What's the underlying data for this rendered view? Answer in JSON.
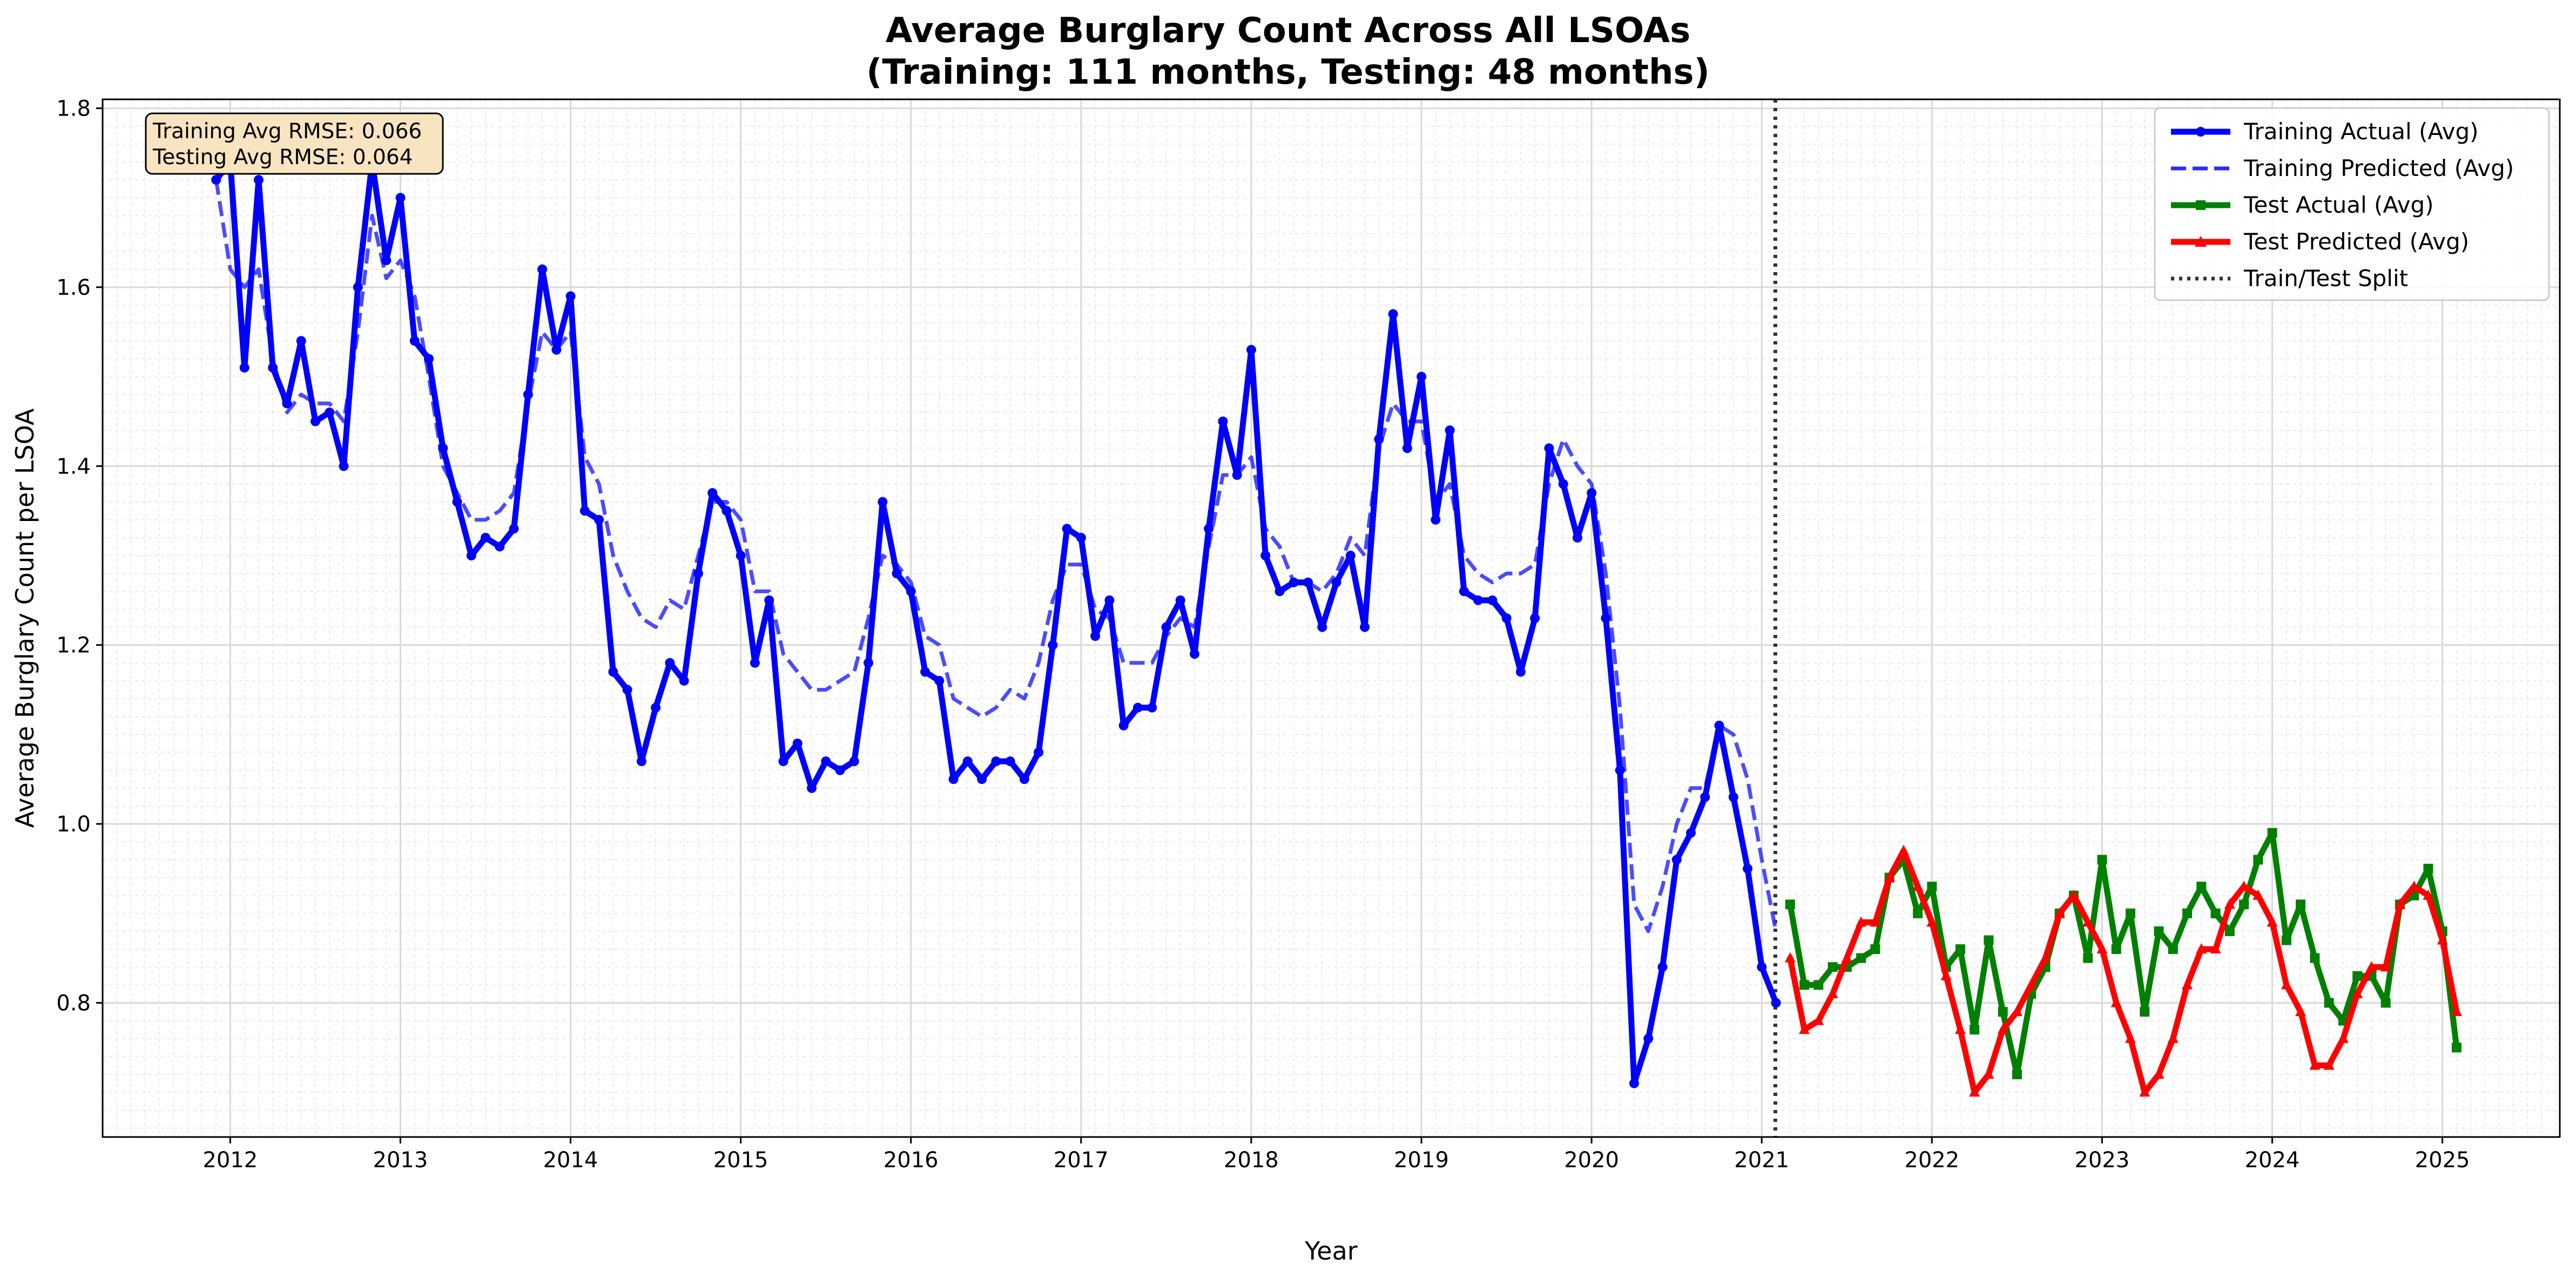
{
  "chart_data": {
    "type": "line",
    "title": "Average Burglary Count Across All LSOAs",
    "subtitle": "(Training: 111 months, Testing: 48 months)",
    "xlabel": "Year",
    "ylabel": "Average Burglary Count per LSOA",
    "xlim": [
      2011.25,
      2025.69
    ],
    "ylim": [
      0.65,
      1.81
    ],
    "x_ticks": [
      2012,
      2013,
      2014,
      2015,
      2016,
      2017,
      2018,
      2019,
      2020,
      2021,
      2022,
      2023,
      2024,
      2025
    ],
    "y_ticks": [
      0.8,
      1.0,
      1.2,
      1.4,
      1.6,
      1.8
    ],
    "grid": true,
    "legend_position": "top-right",
    "split_x": 2021.08,
    "annotation": [
      "Training Avg RMSE: 0.066",
      "Testing Avg RMSE: 0.064"
    ],
    "x_train_start": 2011.917,
    "x_test_start": 2021.167,
    "series": [
      {
        "name": "Training Actual (Avg)",
        "color": "#0000ff",
        "style": "solid",
        "marker": "circle",
        "values": [
          1.72,
          1.74,
          1.51,
          1.72,
          1.51,
          1.47,
          1.54,
          1.45,
          1.46,
          1.4,
          1.6,
          1.74,
          1.63,
          1.7,
          1.54,
          1.52,
          1.42,
          1.36,
          1.3,
          1.32,
          1.31,
          1.33,
          1.48,
          1.62,
          1.53,
          1.59,
          1.35,
          1.34,
          1.17,
          1.15,
          1.07,
          1.13,
          1.18,
          1.16,
          1.28,
          1.37,
          1.35,
          1.3,
          1.18,
          1.25,
          1.07,
          1.09,
          1.04,
          1.07,
          1.06,
          1.07,
          1.18,
          1.36,
          1.28,
          1.26,
          1.17,
          1.16,
          1.05,
          1.07,
          1.05,
          1.07,
          1.07,
          1.05,
          1.08,
          1.2,
          1.33,
          1.32,
          1.21,
          1.25,
          1.11,
          1.13,
          1.13,
          1.22,
          1.25,
          1.19,
          1.33,
          1.45,
          1.39,
          1.53,
          1.3,
          1.26,
          1.27,
          1.27,
          1.22,
          1.27,
          1.3,
          1.22,
          1.43,
          1.57,
          1.42,
          1.5,
          1.34,
          1.44,
          1.26,
          1.25,
          1.25,
          1.23,
          1.17,
          1.23,
          1.42,
          1.38,
          1.32,
          1.37,
          1.23,
          1.06,
          0.71,
          0.76,
          0.84,
          0.96,
          0.99,
          1.03,
          1.11,
          1.03,
          0.95,
          0.84,
          0.8
        ]
      },
      {
        "name": "Training Predicted (Avg)",
        "color": "#2b2bff",
        "style": "dashed",
        "marker": "none",
        "values": [
          1.72,
          1.62,
          1.6,
          1.62,
          1.52,
          1.46,
          1.48,
          1.47,
          1.47,
          1.45,
          1.55,
          1.68,
          1.61,
          1.63,
          1.59,
          1.5,
          1.4,
          1.37,
          1.34,
          1.34,
          1.35,
          1.37,
          1.47,
          1.55,
          1.53,
          1.55,
          1.41,
          1.38,
          1.3,
          1.26,
          1.23,
          1.22,
          1.25,
          1.24,
          1.3,
          1.36,
          1.36,
          1.34,
          1.26,
          1.26,
          1.19,
          1.17,
          1.15,
          1.15,
          1.16,
          1.17,
          1.23,
          1.3,
          1.29,
          1.27,
          1.21,
          1.2,
          1.14,
          1.13,
          1.12,
          1.13,
          1.15,
          1.14,
          1.18,
          1.25,
          1.29,
          1.29,
          1.24,
          1.23,
          1.18,
          1.18,
          1.18,
          1.21,
          1.23,
          1.22,
          1.31,
          1.39,
          1.39,
          1.41,
          1.33,
          1.31,
          1.27,
          1.27,
          1.26,
          1.28,
          1.32,
          1.3,
          1.42,
          1.47,
          1.45,
          1.45,
          1.36,
          1.38,
          1.3,
          1.28,
          1.27,
          1.28,
          1.28,
          1.29,
          1.38,
          1.43,
          1.4,
          1.38,
          1.28,
          1.13,
          0.91,
          0.88,
          0.93,
          1.0,
          1.04,
          1.04,
          1.11,
          1.1,
          1.05,
          0.96,
          0.88
        ]
      },
      {
        "name": "Test Actual (Avg)",
        "color": "#008000",
        "style": "solid",
        "marker": "square",
        "values": [
          0.91,
          0.82,
          0.82,
          0.84,
          0.84,
          0.85,
          0.86,
          0.94,
          0.96,
          0.9,
          0.93,
          0.84,
          0.86,
          0.77,
          0.87,
          0.79,
          0.72,
          0.81,
          0.84,
          0.9,
          0.92,
          0.85,
          0.96,
          0.86,
          0.9,
          0.79,
          0.88,
          0.86,
          0.9,
          0.93,
          0.9,
          0.88,
          0.91,
          0.96,
          0.99,
          0.87,
          0.91,
          0.85,
          0.8,
          0.78,
          0.83,
          0.83,
          0.8,
          0.91,
          0.92,
          0.95,
          0.88,
          0.75
        ]
      },
      {
        "name": "Test Predicted (Avg)",
        "color": "#ff0000",
        "style": "solid",
        "marker": "triangle",
        "values": [
          0.85,
          0.77,
          0.78,
          0.81,
          0.85,
          0.89,
          0.89,
          0.94,
          0.97,
          0.93,
          0.89,
          0.83,
          0.77,
          0.7,
          0.72,
          0.77,
          0.79,
          0.82,
          0.85,
          0.9,
          0.92,
          0.89,
          0.86,
          0.8,
          0.76,
          0.7,
          0.72,
          0.76,
          0.82,
          0.86,
          0.86,
          0.91,
          0.93,
          0.92,
          0.89,
          0.82,
          0.79,
          0.73,
          0.73,
          0.76,
          0.81,
          0.84,
          0.84,
          0.91,
          0.93,
          0.92,
          0.87,
          0.79
        ]
      },
      {
        "name": "Train/Test Split",
        "color": "#333333",
        "style": "dotted",
        "marker": "none",
        "values": []
      }
    ]
  }
}
